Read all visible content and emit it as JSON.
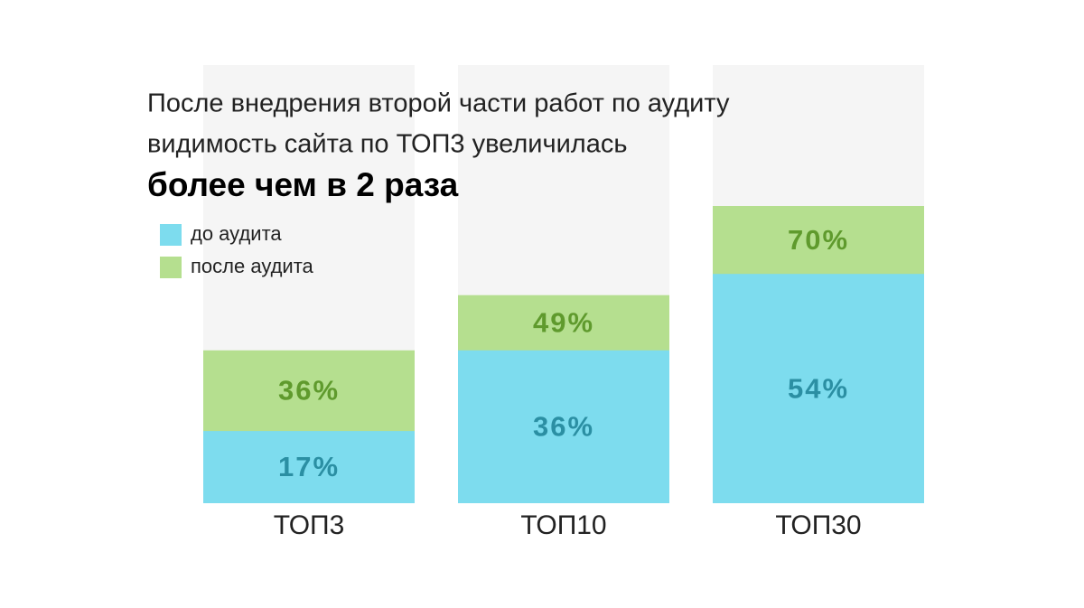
{
  "chart_data": {
    "type": "overlap_bar",
    "title_lines": [
      "После внедрения второй части работ по аудиту",
      "видимость сайта по ТОП3 увеличилась"
    ],
    "title_emphasis": "более чем в 2 раза",
    "categories": [
      "ТОП3",
      "ТОП10",
      "ТОП30"
    ],
    "series": [
      {
        "name": "до аудита",
        "color": "#7ddcee",
        "label_color": "#2b8fa3",
        "values": [
          17,
          36,
          54
        ],
        "value_labels": [
          "17%",
          "36%",
          "54%"
        ]
      },
      {
        "name": "после аудита",
        "color": "#b5df8f",
        "label_color": "#5f9a2d",
        "values": [
          36,
          49,
          70
        ],
        "value_labels": [
          "36%",
          "49%",
          "70%"
        ]
      }
    ],
    "ylim": [
      0,
      100
    ],
    "background_color": "#f5f5f5"
  }
}
